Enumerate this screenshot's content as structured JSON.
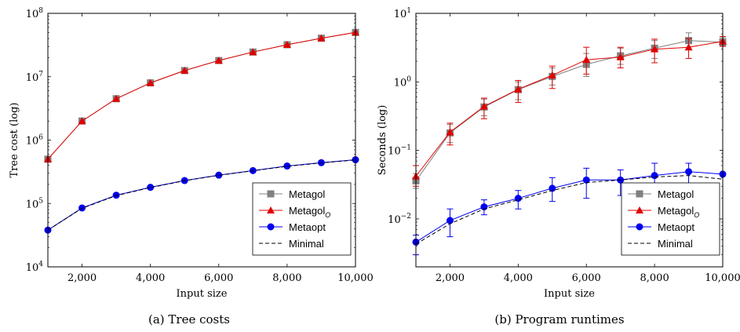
{
  "colors": {
    "metagol": "#808080",
    "metagol_o": "#e00000",
    "metaopt": "#0000ee",
    "minimal": "#000000"
  },
  "chart_data": [
    {
      "type": "line",
      "caption": "(a) Tree costs",
      "xlabel": "Input size",
      "ylabel": "Tree cost (log)",
      "yscale": "log",
      "xlim": [
        1000,
        10000
      ],
      "ylim": [
        10000,
        100000000
      ],
      "x": [
        1000,
        2000,
        3000,
        4000,
        5000,
        6000,
        7000,
        8000,
        9000,
        10000
      ],
      "xticks": [
        2000,
        4000,
        6000,
        8000,
        10000
      ],
      "xtick_labels": [
        "2,000",
        "4,000",
        "6,000",
        "8,000",
        "10,000"
      ],
      "yticks": [
        10000,
        100000,
        1000000,
        10000000,
        100000000
      ],
      "ytick_labels": [
        [
          "10",
          "4"
        ],
        [
          "10",
          "5"
        ],
        [
          "10",
          "6"
        ],
        [
          "10",
          "7"
        ],
        [
          "10",
          "8"
        ]
      ],
      "legend": [
        "Metagol",
        "Metagol_O",
        "Metaopt",
        "Minimal"
      ],
      "legend_position": "bottom-right",
      "series": [
        {
          "name": "Metagol",
          "marker": "square",
          "color": "#808080",
          "values": [
            500000,
            2000000,
            4500000,
            8000000,
            12500000,
            18000000,
            24500000,
            32000000,
            40500000,
            50000000
          ]
        },
        {
          "name": "Metagol_O",
          "marker": "triangle",
          "color": "#e00000",
          "values": [
            500000,
            2000000,
            4500000,
            8000000,
            12500000,
            18000000,
            24500000,
            32000000,
            40500000,
            50000000
          ]
        },
        {
          "name": "Metaopt",
          "marker": "circle",
          "color": "#0000ee",
          "values": [
            38000,
            85000,
            135000,
            180000,
            230000,
            280000,
            330000,
            390000,
            440000,
            490000
          ]
        },
        {
          "name": "Minimal",
          "marker": "none",
          "dashed": true,
          "color": "#000000",
          "values": [
            38000,
            84000,
            133000,
            178000,
            228000,
            278000,
            328000,
            386000,
            436000,
            486000
          ]
        }
      ]
    },
    {
      "type": "line",
      "caption": "(b) Program runtimes",
      "xlabel": "Input size",
      "ylabel": "Seconds (log)",
      "yscale": "log",
      "xlim": [
        1000,
        10000
      ],
      "ylim": [
        0.002,
        10
      ],
      "x": [
        1000,
        2000,
        3000,
        4000,
        5000,
        6000,
        7000,
        8000,
        9000,
        10000
      ],
      "xticks": [
        2000,
        4000,
        6000,
        8000,
        10000
      ],
      "xtick_labels": [
        "2,000",
        "4,000",
        "6,000",
        "8,000",
        "10,000"
      ],
      "yticks": [
        0.01,
        0.1,
        1,
        10
      ],
      "ytick_labels": [
        [
          "10",
          "−2"
        ],
        [
          "10",
          "−1"
        ],
        [
          "10",
          "0"
        ],
        [
          "10",
          "1"
        ]
      ],
      "legend": [
        "Metagol",
        "Metagol_O",
        "Metaopt",
        "Minimal"
      ],
      "legend_position": "bottom-right",
      "series": [
        {
          "name": "Metagol",
          "marker": "square",
          "color": "#808080",
          "values": [
            0.036,
            0.18,
            0.43,
            0.77,
            1.2,
            1.8,
            2.4,
            3.1,
            4.0,
            3.8
          ],
          "err_low": [
            0.028,
            0.13,
            0.32,
            0.55,
            0.9,
            1.2,
            1.8,
            2.2,
            3.0,
            3.4
          ],
          "err_high": [
            0.046,
            0.24,
            0.56,
            1.0,
            1.6,
            2.6,
            3.1,
            4.0,
            5.2,
            4.4
          ]
        },
        {
          "name": "Metagol_O",
          "marker": "triangle",
          "color": "#e00000",
          "values": [
            0.042,
            0.185,
            0.44,
            0.78,
            1.25,
            2.1,
            2.3,
            3.0,
            3.2,
            3.9
          ],
          "err_low": [
            0.03,
            0.12,
            0.29,
            0.5,
            0.8,
            1.3,
            1.6,
            1.9,
            2.2,
            3.3
          ],
          "err_high": [
            0.06,
            0.25,
            0.58,
            1.05,
            1.7,
            3.2,
            3.2,
            4.2,
            4.3,
            4.6
          ]
        },
        {
          "name": "Metaopt",
          "marker": "circle",
          "color": "#0000ee",
          "values": [
            0.0046,
            0.0095,
            0.015,
            0.02,
            0.028,
            0.037,
            0.037,
            0.043,
            0.049,
            0.045
          ],
          "err_low": [
            0.003,
            0.0055,
            0.0115,
            0.014,
            0.018,
            0.02,
            0.022,
            0.024,
            0.03,
            0.045
          ],
          "err_high": [
            0.0058,
            0.014,
            0.019,
            0.026,
            0.04,
            0.055,
            0.052,
            0.065,
            0.065,
            0.045
          ]
        },
        {
          "name": "Minimal",
          "marker": "none",
          "dashed": true,
          "color": "#000000",
          "values": [
            0.0043,
            0.0085,
            0.014,
            0.019,
            0.026,
            0.034,
            0.037,
            0.041,
            0.043,
            0.038
          ]
        }
      ]
    }
  ]
}
